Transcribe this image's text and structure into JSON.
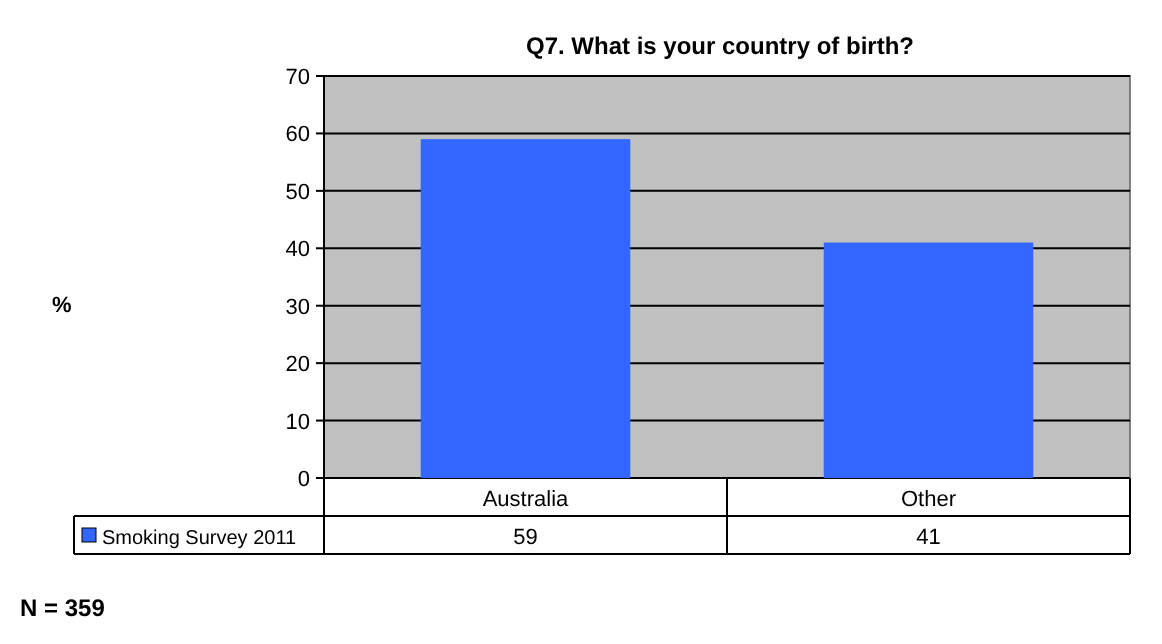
{
  "chart_data": {
    "type": "bar",
    "title": "Q7. What is your country of birth?",
    "categories": [
      "Australia",
      "Other"
    ],
    "series": [
      {
        "name": "Smoking Survey 2011",
        "color": "#3366ff",
        "values": [
          59,
          41
        ]
      }
    ],
    "ylim": [
      0,
      70
    ],
    "yticks": [
      0,
      10,
      20,
      30,
      40,
      50,
      60,
      70
    ],
    "grid": "y",
    "data_labels": true,
    "legend": "bottom left",
    "annotations": [
      "%",
      "N = 359"
    ]
  }
}
